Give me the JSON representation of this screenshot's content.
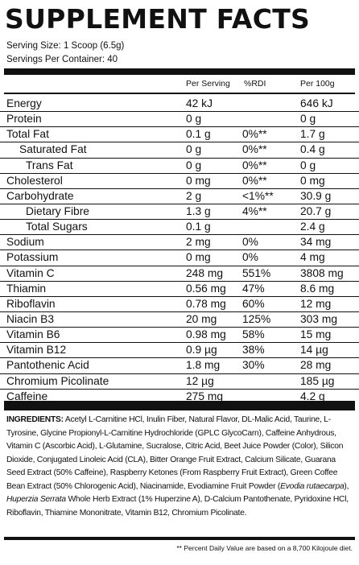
{
  "title": "SUPPLEMENT FACTS",
  "serving_size": "Serving Size: 1 Scoop (6.5g)",
  "servings_per_container": "Servings Per Container: 40",
  "headers": {
    "per_serving": "Per Serving",
    "rdi": "%RDI",
    "per_100g": "Per 100g"
  },
  "rows": [
    {
      "name": "Energy",
      "serving": "42 kJ",
      "rdi": "",
      "per100": "646 kJ",
      "indent": 0
    },
    {
      "name": "Protein",
      "serving": "0 g",
      "rdi": "",
      "per100": "0 g",
      "indent": 0
    },
    {
      "name": "Total Fat",
      "serving": "0.1 g",
      "rdi": "0%**",
      "per100": "1.7 g",
      "indent": 0
    },
    {
      "name": "Saturated Fat",
      "serving": "0 g",
      "rdi": "0%**",
      "per100": "0.4 g",
      "indent": 1
    },
    {
      "name": "Trans Fat",
      "serving": "0 g",
      "rdi": "0%**",
      "per100": "0 g",
      "indent": 2
    },
    {
      "name": "Cholesterol",
      "serving": "0 mg",
      "rdi": "0%**",
      "per100": "0 mg",
      "indent": 0
    },
    {
      "name": "Carbohydrate",
      "serving": "2 g",
      "rdi": "<1%**",
      "per100": "30.9 g",
      "indent": 0
    },
    {
      "name": "Dietary Fibre",
      "serving": "1.3 g",
      "rdi": "4%**",
      "per100": "20.7 g",
      "indent": 2
    },
    {
      "name": "Total Sugars",
      "serving": "0.1 g",
      "rdi": "",
      "per100": "2.4 g",
      "indent": 2
    },
    {
      "name": "Sodium",
      "serving": "2 mg",
      "rdi": "0%",
      "per100": "34 mg",
      "indent": 0
    },
    {
      "name": "Potassium",
      "serving": "0 mg",
      "rdi": "0%",
      "per100": "4 mg",
      "indent": 0
    },
    {
      "name": "Vitamin C",
      "serving": "248 mg",
      "rdi": "551%",
      "per100": "3808 mg",
      "indent": 0
    },
    {
      "name": "Thiamin",
      "serving": "0.56 mg",
      "rdi": "47%",
      "per100": "8.6 mg",
      "indent": 0
    },
    {
      "name": "Riboflavin",
      "serving": "0.78 mg",
      "rdi": "60%",
      "per100": "12 mg",
      "indent": 0
    },
    {
      "name": "Niacin B3",
      "serving": "20 mg",
      "rdi": "125%",
      "per100": "303 mg",
      "indent": 0
    },
    {
      "name": "Vitamin B6",
      "serving": "0.98 mg",
      "rdi": "58%",
      "per100": "15 mg",
      "indent": 0
    },
    {
      "name": "Vitamin B12",
      "serving": "0.9 µg",
      "rdi": "38%",
      "per100": "14 µg",
      "indent": 0
    },
    {
      "name": "Pantothenic Acid",
      "serving": "1.8 mg",
      "rdi": "30%",
      "per100": "28 mg",
      "indent": 0
    },
    {
      "name": "Chromium Picolinate",
      "serving": "12 µg",
      "rdi": "",
      "per100": "185 µg",
      "indent": 0
    },
    {
      "name": "Caffeine",
      "serving": "275 mg",
      "rdi": "",
      "per100": "4.2 g",
      "indent": 0
    }
  ],
  "ingredients": {
    "label": "INGREDIENTS:",
    "part1": " Acetyl L-Carnitine HCl, Inulin Fiber, Natural Flavor, DL-Malic Acid, Taurine, L-Tyrosine, Glycine Propionyl-L-Carnitine Hydrochloride (GPLC GlycoCarn), Caffeine Anhydrous, Vitamin C (Ascorbic Acid), L-Glutamine, Sucralose, Citric Acid, Beet Juice Powder (Color), Silicon Dioxide, Conjugated Linoleic Acid (CLA), Bitter Orange Fruit Extract, Calcium Silicate, Guarana Seed Extract (50% Caffeine), Raspberry Ketones (From Raspberry Fruit Extract), Green Coffee Bean Extract (50% Chlorogenic Acid), Niacinamide, Evodiamine Fruit Powder (",
    "italic1": "Evodia rutaecarpa",
    "part2": "), ",
    "italic2": "Huperzia Serrata",
    "part3": " Whole Herb Extract (1% Huperzine A), D-Calcium Pantothenate, Pyridoxine HCl, Riboflavin, Thiamine Mononitrate, Vitamin B12, Chromium Picolinate."
  },
  "footnote": "** Percent Daily Value are based on a 8,700 Kilojoule diet."
}
